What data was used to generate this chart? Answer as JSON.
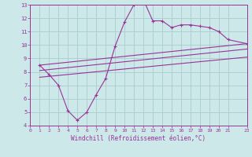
{
  "background_color": "#cce8e8",
  "grid_color": "#aacccc",
  "line_color": "#993399",
  "marker_color": "#993399",
  "xlabel": "Windchill (Refroidissement éolien,°C)",
  "xlim": [
    0,
    23
  ],
  "ylim": [
    4,
    13
  ],
  "xticks": [
    0,
    1,
    2,
    3,
    4,
    5,
    6,
    7,
    8,
    9,
    10,
    11,
    12,
    13,
    14,
    15,
    16,
    17,
    18,
    19,
    20,
    21,
    23
  ],
  "yticks": [
    4,
    5,
    6,
    7,
    8,
    9,
    10,
    11,
    12,
    13
  ],
  "series1_x": [
    1,
    2,
    3,
    4,
    5,
    6,
    7,
    8,
    9,
    10,
    11,
    12,
    13,
    14,
    15,
    16,
    17,
    18,
    19,
    20,
    21,
    23
  ],
  "series1_y": [
    8.5,
    7.8,
    7.0,
    5.1,
    4.4,
    5.0,
    6.3,
    7.5,
    9.9,
    11.7,
    13.0,
    13.4,
    11.8,
    11.8,
    11.3,
    11.5,
    11.5,
    11.4,
    11.3,
    11.0,
    10.4,
    10.1
  ],
  "series2_x": [
    1,
    23
  ],
  "series2_y": [
    8.5,
    10.1
  ],
  "series3_x": [
    1,
    23
  ],
  "series3_y": [
    8.1,
    9.7
  ],
  "series4_x": [
    1,
    23
  ],
  "series4_y": [
    7.6,
    9.1
  ]
}
